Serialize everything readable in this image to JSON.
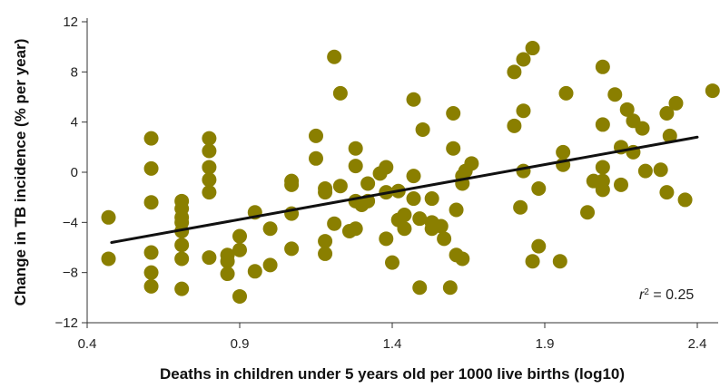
{
  "chart_data": {
    "type": "scatter",
    "xlabel": "Deaths in children under 5 years old per 1000 live births (log10)",
    "ylabel": "Change in TB incidence (% per year)",
    "xlim": [
      0.4,
      2.45
    ],
    "ylim": [
      -12,
      12
    ],
    "x_ticks": [
      0.4,
      0.9,
      1.4,
      1.9,
      2.4
    ],
    "y_ticks": [
      -12,
      -8,
      -4,
      0,
      4,
      8,
      12
    ],
    "x_tick_labels": [
      "0.4",
      "0.9",
      "1.4",
      "1.9",
      "2.4"
    ],
    "y_tick_labels": [
      "−12",
      "−8",
      "−4",
      "0",
      "4",
      "8",
      "12"
    ],
    "annotation": {
      "r_symbol": "r",
      "r_exp": "2",
      "r_rest": " = 0.25"
    },
    "marker_color": "#8a7f00",
    "trendline": {
      "x": [
        0.48,
        2.4
      ],
      "y": [
        -5.6,
        2.8
      ]
    },
    "points": [
      [
        0.47,
        -3.6
      ],
      [
        0.47,
        -6.9
      ],
      [
        0.61,
        2.7
      ],
      [
        0.61,
        0.3
      ],
      [
        0.61,
        -2.4
      ],
      [
        0.61,
        -6.4
      ],
      [
        0.61,
        -8.0
      ],
      [
        0.61,
        -9.1
      ],
      [
        0.71,
        -2.3
      ],
      [
        0.71,
        -2.9
      ],
      [
        0.71,
        -3.6
      ],
      [
        0.71,
        -4.0
      ],
      [
        0.71,
        -4.7
      ],
      [
        0.71,
        -5.8
      ],
      [
        0.71,
        -6.9
      ],
      [
        0.71,
        -9.3
      ],
      [
        0.8,
        2.7
      ],
      [
        0.8,
        1.7
      ],
      [
        0.8,
        0.4
      ],
      [
        0.8,
        -0.6
      ],
      [
        0.8,
        -1.6
      ],
      [
        0.8,
        -6.8
      ],
      [
        0.86,
        -6.6
      ],
      [
        0.86,
        -7.1
      ],
      [
        0.86,
        -8.1
      ],
      [
        0.9,
        -5.1
      ],
      [
        0.9,
        -6.2
      ],
      [
        0.9,
        -9.9
      ],
      [
        0.95,
        -3.2
      ],
      [
        0.95,
        -7.9
      ],
      [
        1.0,
        -4.5
      ],
      [
        1.0,
        -7.4
      ],
      [
        1.07,
        -0.7
      ],
      [
        1.07,
        -1.0
      ],
      [
        1.07,
        -3.3
      ],
      [
        1.07,
        -6.1
      ],
      [
        1.15,
        2.9
      ],
      [
        1.15,
        1.1
      ],
      [
        1.18,
        -1.3
      ],
      [
        1.18,
        -1.6
      ],
      [
        1.18,
        -5.5
      ],
      [
        1.18,
        -6.5
      ],
      [
        1.21,
        9.2
      ],
      [
        1.21,
        -4.1
      ],
      [
        1.23,
        6.3
      ],
      [
        1.23,
        -1.1
      ],
      [
        1.26,
        -4.7
      ],
      [
        1.28,
        1.9
      ],
      [
        1.28,
        0.5
      ],
      [
        1.28,
        -2.3
      ],
      [
        1.28,
        -4.5
      ],
      [
        1.3,
        -2.6
      ],
      [
        1.32,
        -0.9
      ],
      [
        1.32,
        -2.3
      ],
      [
        1.36,
        -0.1
      ],
      [
        1.38,
        0.4
      ],
      [
        1.38,
        -1.6
      ],
      [
        1.38,
        -5.3
      ],
      [
        1.4,
        -7.2
      ],
      [
        1.42,
        -1.5
      ],
      [
        1.42,
        -3.8
      ],
      [
        1.44,
        -3.4
      ],
      [
        1.44,
        -4.5
      ],
      [
        1.47,
        5.8
      ],
      [
        1.47,
        -0.3
      ],
      [
        1.47,
        -2.1
      ],
      [
        1.49,
        -9.2
      ],
      [
        1.49,
        -3.7
      ],
      [
        1.5,
        3.4
      ],
      [
        1.53,
        -2.1
      ],
      [
        1.53,
        -4.0
      ],
      [
        1.53,
        -4.5
      ],
      [
        1.56,
        -4.3
      ],
      [
        1.57,
        -5.3
      ],
      [
        1.59,
        -9.2
      ],
      [
        1.6,
        4.7
      ],
      [
        1.6,
        1.9
      ],
      [
        1.61,
        -3.0
      ],
      [
        1.61,
        -6.6
      ],
      [
        1.63,
        -0.9
      ],
      [
        1.63,
        -6.9
      ],
      [
        1.63,
        -0.3
      ],
      [
        1.64,
        0.1
      ],
      [
        1.66,
        0.7
      ],
      [
        1.8,
        8.0
      ],
      [
        1.8,
        3.7
      ],
      [
        1.82,
        -2.8
      ],
      [
        1.83,
        9.0
      ],
      [
        1.83,
        4.9
      ],
      [
        1.83,
        0.1
      ],
      [
        1.86,
        9.9
      ],
      [
        1.86,
        -7.1
      ],
      [
        1.88,
        -1.3
      ],
      [
        1.88,
        -5.9
      ],
      [
        1.95,
        -7.1
      ],
      [
        1.96,
        1.6
      ],
      [
        1.96,
        0.6
      ],
      [
        1.97,
        6.3
      ],
      [
        2.04,
        -3.2
      ],
      [
        2.06,
        -0.7
      ],
      [
        2.09,
        8.4
      ],
      [
        2.09,
        3.8
      ],
      [
        2.09,
        0.4
      ],
      [
        2.09,
        -0.7
      ],
      [
        2.09,
        -1.4
      ],
      [
        2.13,
        6.2
      ],
      [
        2.15,
        2.0
      ],
      [
        2.15,
        -1.0
      ],
      [
        2.17,
        5.0
      ],
      [
        2.19,
        4.1
      ],
      [
        2.19,
        1.6
      ],
      [
        2.22,
        3.5
      ],
      [
        2.23,
        0.1
      ],
      [
        2.28,
        0.2
      ],
      [
        2.3,
        4.7
      ],
      [
        2.3,
        -1.6
      ],
      [
        2.31,
        2.9
      ],
      [
        2.33,
        5.5
      ],
      [
        2.36,
        -2.2
      ],
      [
        2.45,
        6.5
      ]
    ]
  }
}
